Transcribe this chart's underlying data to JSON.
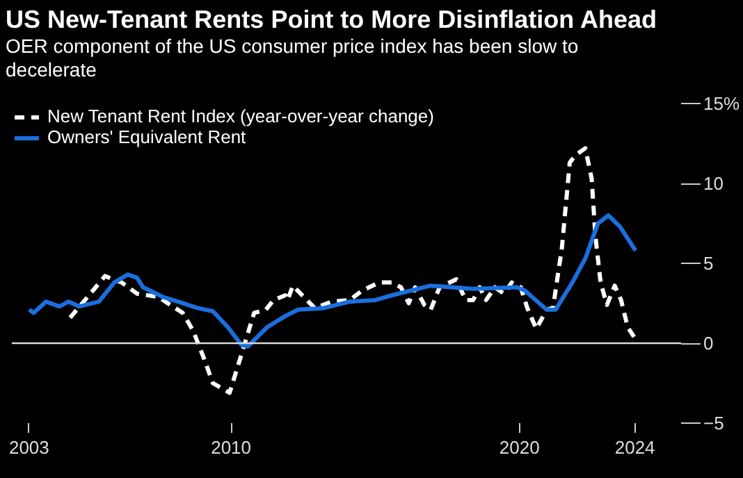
{
  "chart_data": {
    "type": "line",
    "title": "US New-Tenant Rents Point to More Disinflation Ahead",
    "subtitle": "OER component of the US consumer price index has been slow to\ndecelerate",
    "legend": "top left",
    "grid": false,
    "xlim": [
      2002.4,
      2025.6
    ],
    "xticks": [
      2003,
      2010,
      2020,
      2024
    ],
    "ylim": [
      -5,
      15
    ],
    "yticks": [
      -5,
      0,
      5,
      10,
      {
        "value": 15,
        "label": "15%"
      }
    ],
    "ref_lines": [
      {
        "axis": "y",
        "value": 0,
        "color": "#d9d9d9"
      }
    ],
    "series": [
      {
        "name": "New Tenant Rent Index (year-over-year change)",
        "color": "#ffffff",
        "line_style": "dashed",
        "x": [
          2004.42,
          2004.89,
          2005.63,
          2006.21,
          2006.74,
          2007.47,
          2008.32,
          2008.68,
          2009.05,
          2009.37,
          2009.95,
          2010.36,
          2010.8,
          2011.21,
          2011.47,
          2011.88,
          2011.96,
          2012.14,
          2012.9,
          2013.48,
          2014.11,
          2014.55,
          2015.13,
          2015.58,
          2015.89,
          2016.16,
          2016.38,
          2016.7,
          2016.92,
          2017.23,
          2017.81,
          2018.13,
          2018.39,
          2018.62,
          2018.84,
          2019.15,
          2019.46,
          2019.73,
          2020.04,
          2020.27,
          2020.58,
          2020.94,
          2021.16,
          2021.47,
          2021.74,
          2021.96,
          2022.28,
          2022.5,
          2022.63,
          2022.81,
          2023.03,
          2023.3,
          2023.52,
          2023.75,
          2023.97
        ],
        "values": [
          1.6,
          2.6,
          4.2,
          3.8,
          3.1,
          2.9,
          1.9,
          0.8,
          -0.9,
          -2.5,
          -3.1,
          -0.7,
          1.9,
          2.1,
          2.7,
          3.0,
          2.7,
          3.6,
          2.2,
          2.6,
          2.7,
          3.3,
          3.8,
          3.8,
          3.5,
          2.5,
          3.5,
          2.4,
          2.1,
          3.5,
          4.0,
          2.7,
          2.7,
          3.5,
          2.7,
          3.5,
          3.1,
          3.8,
          3.5,
          2.2,
          0.9,
          2.1,
          2.2,
          6.0,
          11.3,
          11.8,
          12.2,
          10.3,
          6.7,
          3.8,
          2.4,
          3.6,
          2.7,
          1.0,
          0.4
        ]
      },
      {
        "name": "Owners' Equivalent Rent",
        "color": "#1a6fdf",
        "line_style": "solid",
        "x": [
          2003.0,
          2003.16,
          2003.58,
          2004.05,
          2004.37,
          2004.74,
          2005.42,
          2005.95,
          2006.42,
          2006.74,
          2006.95,
          2007.63,
          2008.16,
          2008.84,
          2009.37,
          2009.89,
          2010.36,
          2010.58,
          2011.25,
          2011.88,
          2012.32,
          2013.21,
          2014.11,
          2015.0,
          2015.58,
          2016.92,
          2018.39,
          2019.91,
          2020.18,
          2020.94,
          2021.25,
          2021.83,
          2022.28,
          2022.72,
          2023.08,
          2023.48,
          2024.02
        ],
        "values": [
          2.1,
          1.9,
          2.6,
          2.3,
          2.6,
          2.3,
          2.6,
          3.8,
          4.3,
          4.1,
          3.5,
          2.9,
          2.6,
          2.2,
          2.0,
          1.0,
          -0.1,
          -0.2,
          1.0,
          1.7,
          2.1,
          2.2,
          2.6,
          2.7,
          3.0,
          3.6,
          3.4,
          3.5,
          3.3,
          2.1,
          2.1,
          3.8,
          5.3,
          7.5,
          8.0,
          7.3,
          5.8
        ]
      }
    ]
  }
}
